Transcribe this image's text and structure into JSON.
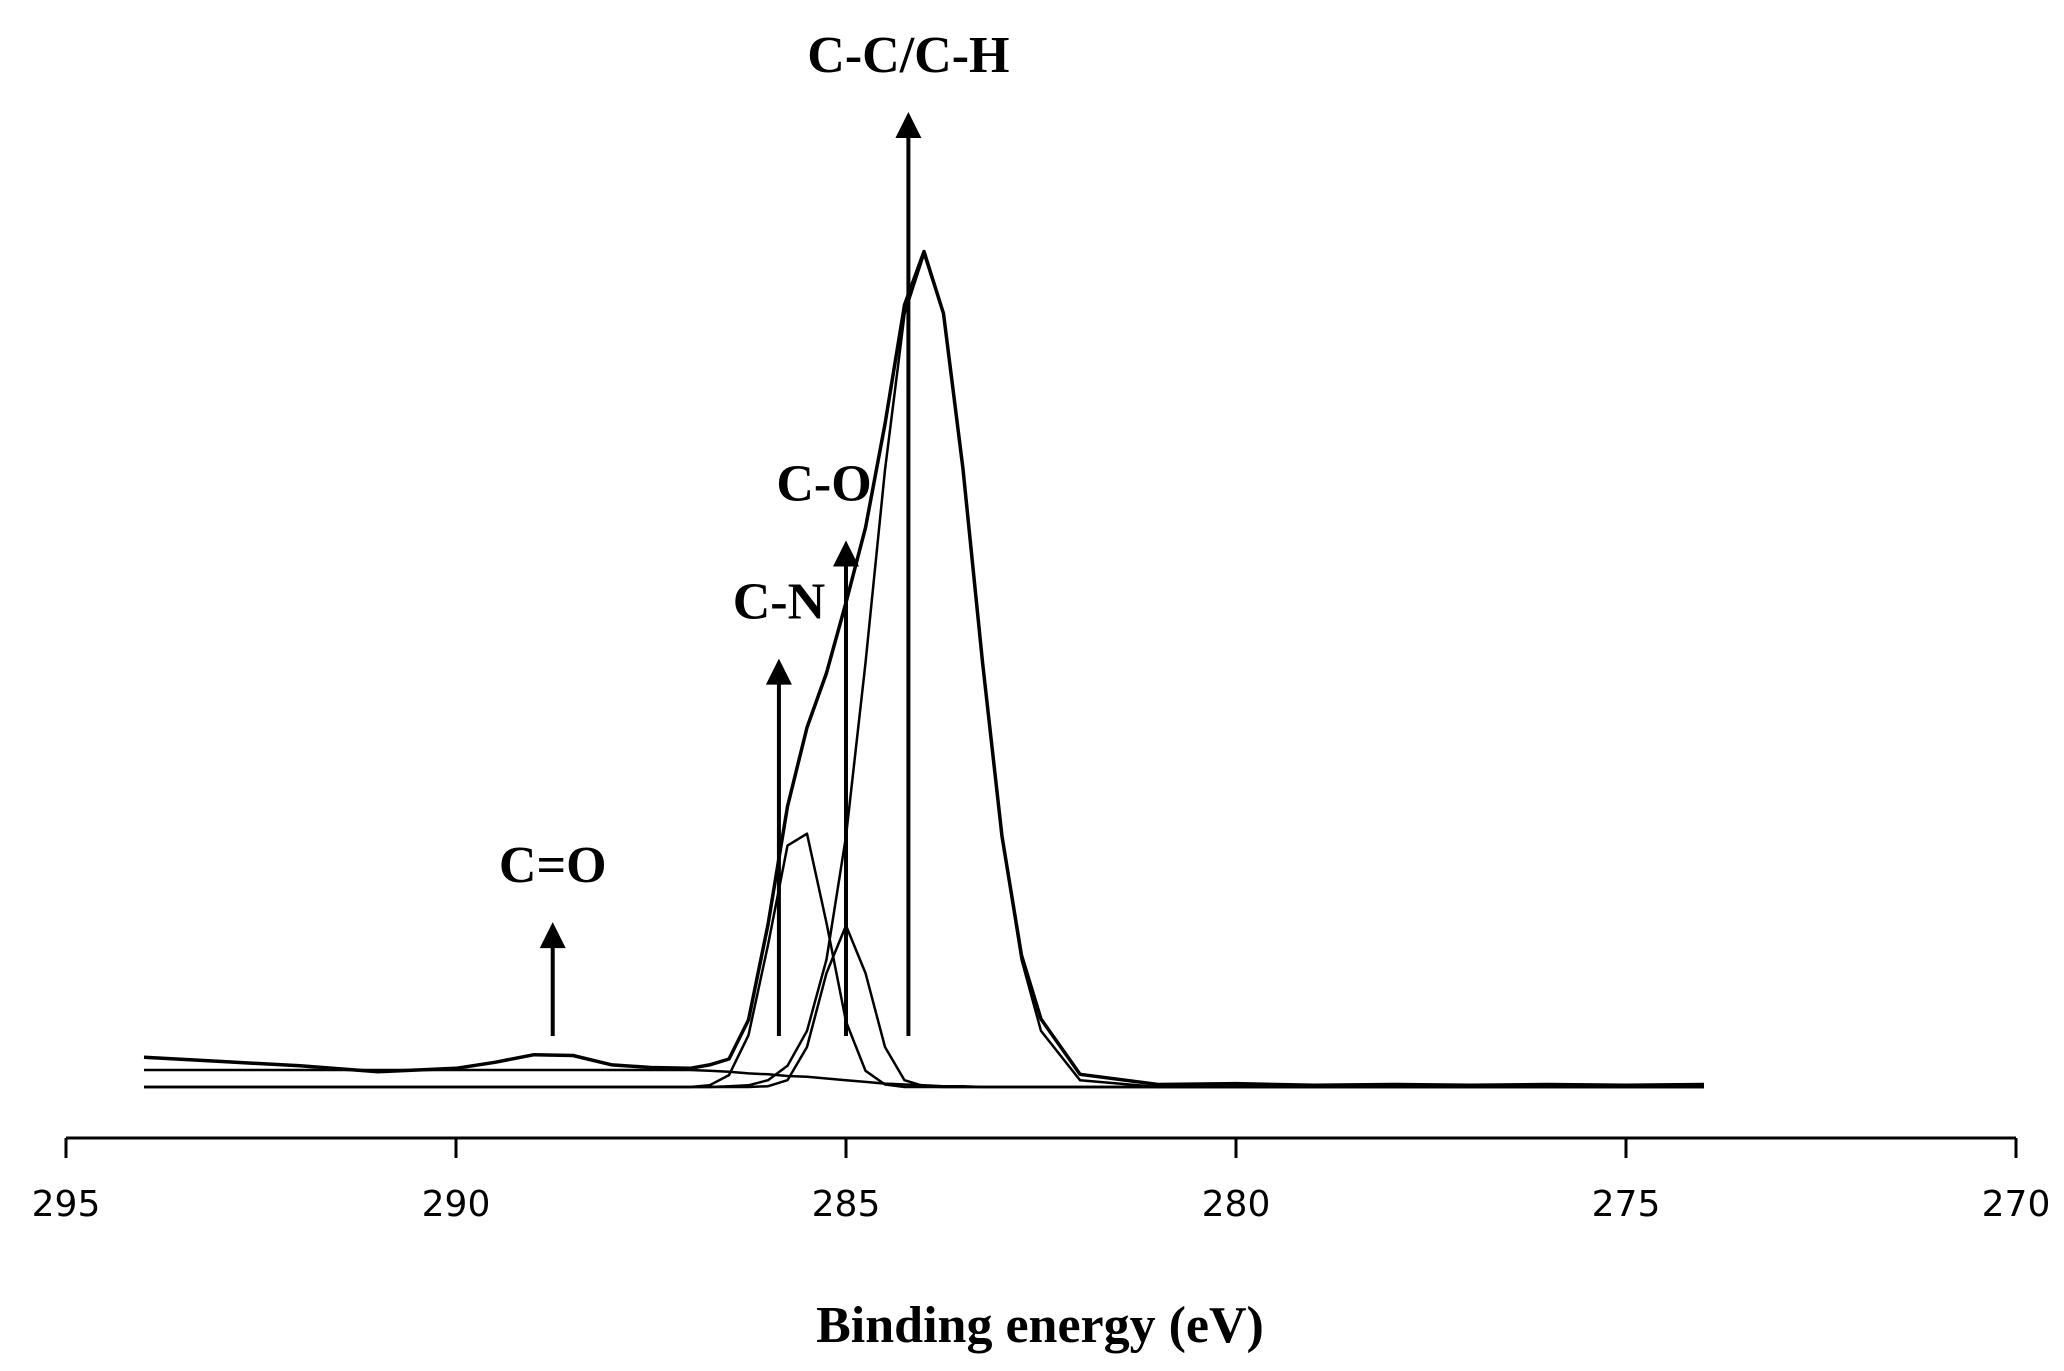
{
  "chart_data": {
    "type": "line",
    "x_label": "Binding energy (eV)",
    "xlim": [
      295,
      270
    ],
    "xticks": [
      295,
      290,
      285,
      280,
      275,
      270
    ],
    "ylim": [
      -6,
      100
    ],
    "grid": false,
    "x": [
      294,
      293,
      292,
      291,
      290,
      289.5,
      289,
      288.5,
      288,
      287.5,
      287,
      286.75,
      286.5,
      286.25,
      286,
      285.75,
      285.5,
      285.25,
      285,
      284.75,
      284.5,
      284.25,
      284,
      283.75,
      283.5,
      283.25,
      283,
      282.75,
      282.5,
      282,
      281,
      280,
      279,
      278,
      277,
      276,
      275,
      274
    ],
    "series": [
      {
        "color": "#000000",
        "values": [
          3.5,
          3,
          2.5,
          1.8,
          2.2,
          2.9,
          3.8,
          3.7,
          2.6,
          2.3,
          2.2,
          2.6,
          3.3,
          7.9,
          19.1,
          33,
          42.3,
          48.7,
          57,
          65.8,
          78,
          92,
          98.3,
          91,
          72.7,
          50,
          29.5,
          15.5,
          8,
          1.5,
          0.3,
          0.4,
          0.2,
          0.3,
          0.2,
          0.3,
          0.2,
          0.3
        ]
      },
      {
        "color": "#000000",
        "values": [
          0,
          0,
          0,
          0,
          0,
          0,
          0,
          0,
          0,
          0,
          0,
          0,
          0.1,
          0.2,
          0.8,
          2.5,
          6.6,
          15,
          29.5,
          49.9,
          72.6,
          90.9,
          98,
          90.9,
          72.6,
          49.9,
          29.5,
          15,
          6.6,
          0.8,
          0,
          0,
          0,
          0,
          0,
          0,
          0,
          0
        ]
      },
      {
        "color": "#000000",
        "values": [
          0,
          0,
          0,
          0,
          0,
          0,
          0,
          0,
          0,
          0,
          0,
          0.2,
          1.4,
          6.1,
          16.7,
          28.4,
          29.8,
          19.3,
          7.7,
          1.9,
          0.3,
          0,
          0,
          0,
          0,
          0,
          0,
          0,
          0,
          0,
          0,
          0,
          0,
          0,
          0,
          0,
          0,
          0
        ]
      },
      {
        "color": "#000000",
        "values": [
          0,
          0,
          0,
          0,
          0,
          0,
          0,
          0,
          0,
          0,
          0,
          0,
          0,
          0,
          0.1,
          0.8,
          4.7,
          13.4,
          19,
          13.4,
          4.7,
          0.8,
          0.1,
          0,
          0,
          0,
          0,
          0,
          0,
          0,
          0,
          0,
          0,
          0,
          0,
          0,
          0,
          0
        ]
      },
      {
        "color": "#000000",
        "values": [
          2,
          2,
          2,
          2,
          2,
          2,
          2,
          2,
          2,
          2,
          2,
          1.9,
          1.8,
          1.6,
          1.5,
          1.3,
          1.2,
          1,
          0.8,
          0.6,
          0.4,
          0.3,
          0.2,
          0.1,
          0.1,
          0,
          0,
          0,
          0,
          0,
          0,
          0,
          0,
          0,
          0,
          0,
          0,
          0
        ]
      }
    ],
    "annotations": [
      {
        "text": "C-C/C-H",
        "x": 284.2,
        "y": 114.7
      },
      {
        "text": "C-O",
        "x": 285.0,
        "y": 64.3
      },
      {
        "text": "C-N",
        "x": 285.86,
        "y": 50.4
      },
      {
        "text": "C=O",
        "x": 288.76,
        "y": 19.4
      }
    ]
  }
}
